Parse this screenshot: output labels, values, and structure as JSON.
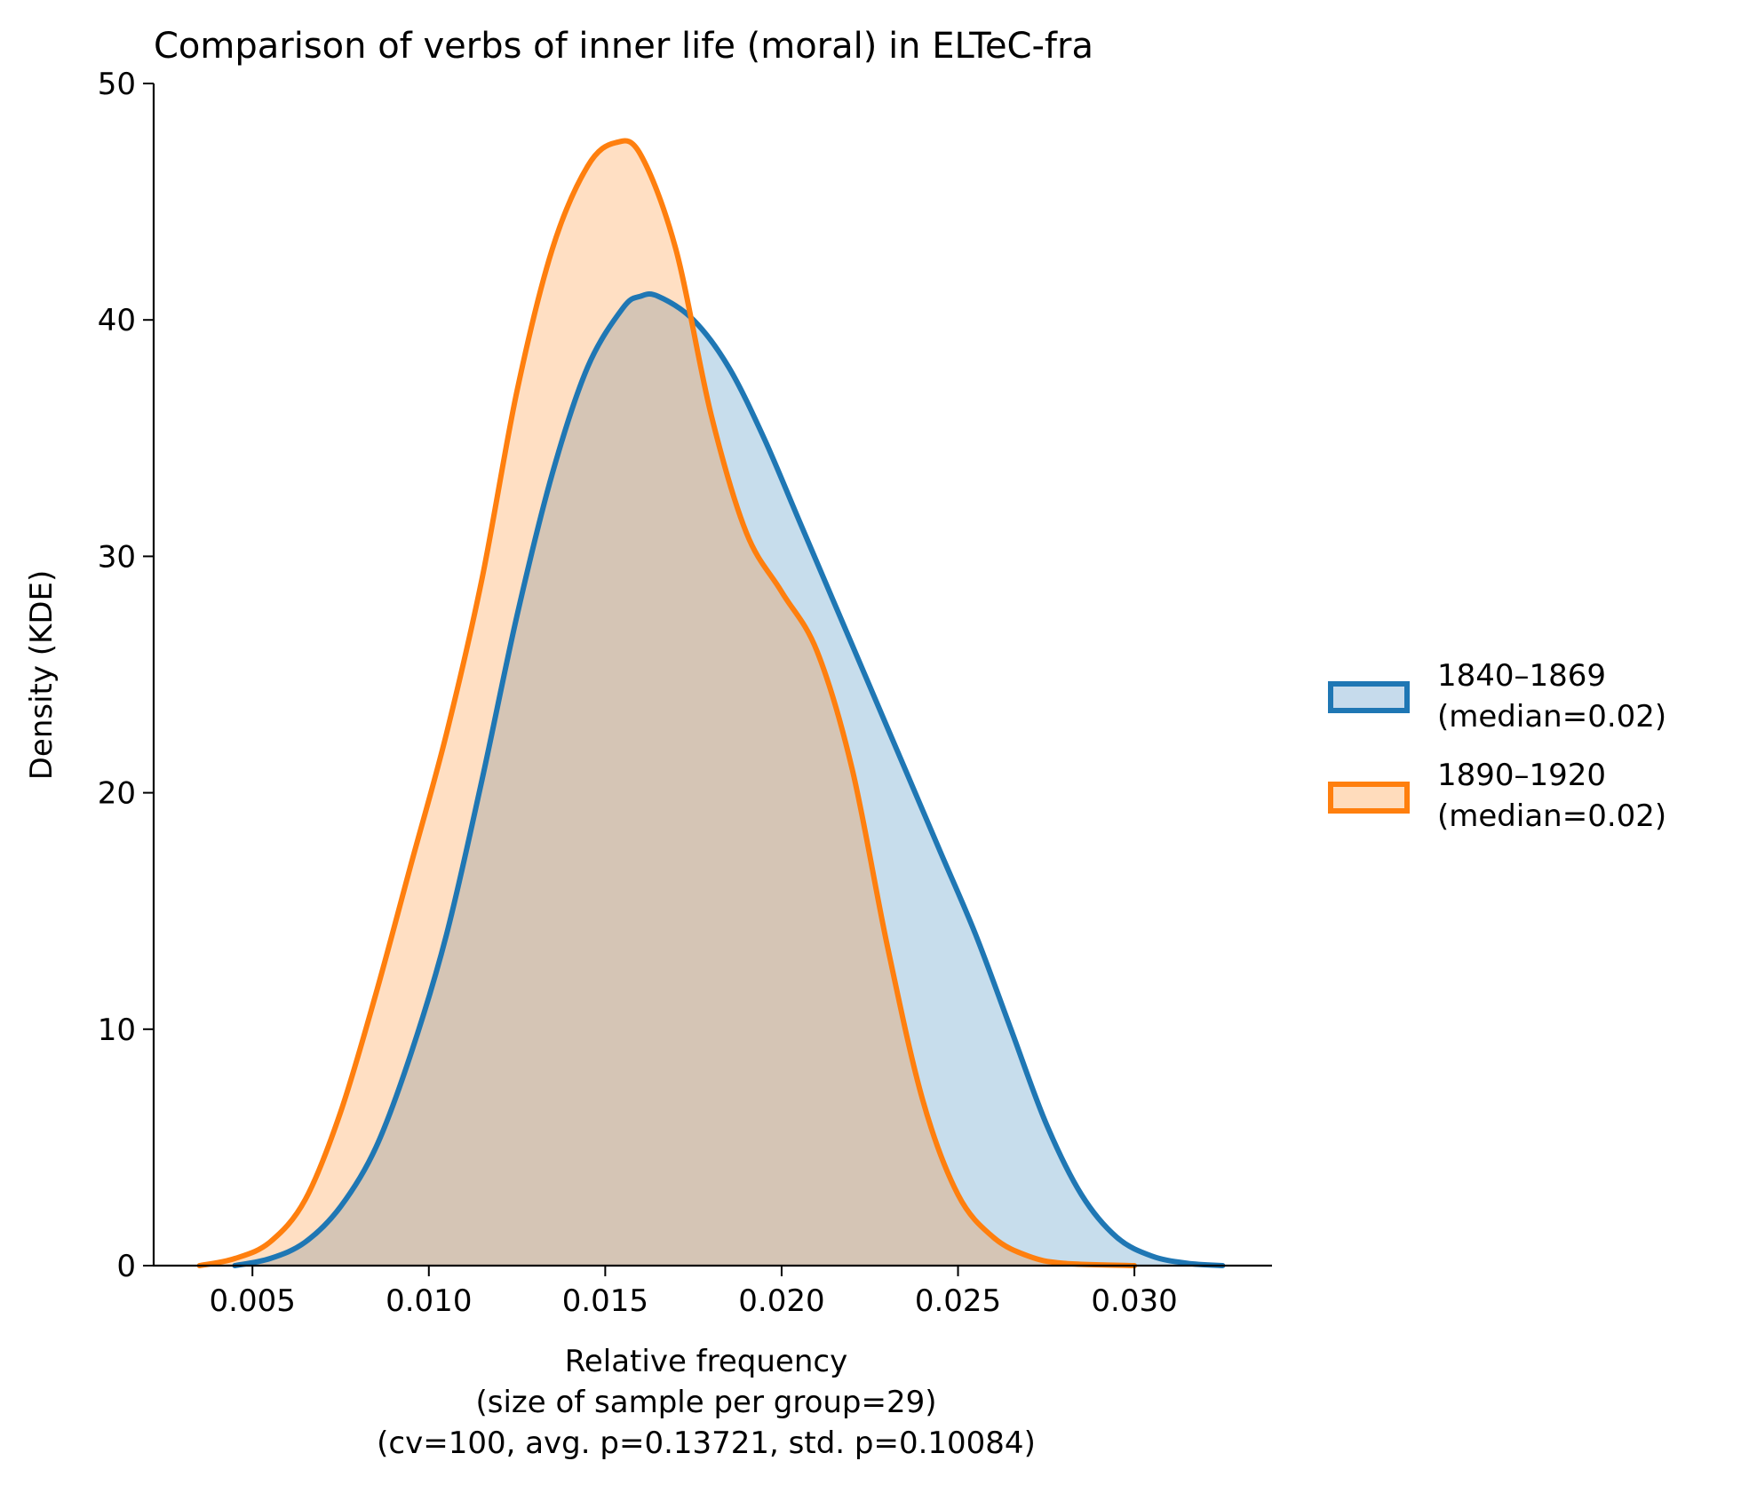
{
  "chart_data": {
    "type": "area",
    "title": "Comparison of verbs of inner life (moral) in ELTeC-fra",
    "ylabel": "Density (KDE)",
    "xlabel_lines": [
      "Relative frequency",
      "(size of sample per group=29)",
      "(cv=100, avg. p=0.13721, std. p=0.10084)"
    ],
    "xlim": [
      0.0022,
      0.0339
    ],
    "ylim": [
      0,
      50
    ],
    "xticks": [
      0.005,
      0.01,
      0.015,
      0.02,
      0.025,
      0.03
    ],
    "xtick_labels": [
      "0.005",
      "0.010",
      "0.015",
      "0.020",
      "0.025",
      "0.030"
    ],
    "yticks": [
      0,
      10,
      20,
      30,
      40,
      50
    ],
    "ytick_labels": [
      "0",
      "10",
      "20",
      "30",
      "40",
      "50"
    ],
    "grid": false,
    "legend_position": "right",
    "series": [
      {
        "name_lines": [
          "1840–1869",
          "(median=0.02)"
        ],
        "color": "#1f77b4",
        "fill": "#1f77b4",
        "fill_opacity": 0.25,
        "points": [
          [
            0.0045,
            0.0
          ],
          [
            0.0055,
            0.3
          ],
          [
            0.0065,
            1.0
          ],
          [
            0.0075,
            2.5
          ],
          [
            0.0085,
            5.0
          ],
          [
            0.0095,
            9.0
          ],
          [
            0.0105,
            14.0
          ],
          [
            0.0115,
            20.5
          ],
          [
            0.0125,
            27.5
          ],
          [
            0.0135,
            33.5
          ],
          [
            0.0145,
            38.0
          ],
          [
            0.0155,
            40.5
          ],
          [
            0.016,
            41.0
          ],
          [
            0.0165,
            41.0
          ],
          [
            0.0175,
            40.0
          ],
          [
            0.0185,
            38.0
          ],
          [
            0.0195,
            35.0
          ],
          [
            0.0205,
            31.5
          ],
          [
            0.0215,
            28.0
          ],
          [
            0.0225,
            24.5
          ],
          [
            0.0235,
            21.0
          ],
          [
            0.0245,
            17.5
          ],
          [
            0.0255,
            14.0
          ],
          [
            0.0265,
            10.0
          ],
          [
            0.0275,
            6.0
          ],
          [
            0.0285,
            3.0
          ],
          [
            0.0295,
            1.2
          ],
          [
            0.0305,
            0.4
          ],
          [
            0.0315,
            0.1
          ],
          [
            0.0325,
            0.0
          ]
        ]
      },
      {
        "name_lines": [
          "1890–1920",
          "(median=0.02)"
        ],
        "color": "#ff7f0e",
        "fill": "#ff7f0e",
        "fill_opacity": 0.25,
        "points": [
          [
            0.0035,
            0.0
          ],
          [
            0.0045,
            0.3
          ],
          [
            0.0055,
            1.0
          ],
          [
            0.0065,
            2.8
          ],
          [
            0.0075,
            6.5
          ],
          [
            0.0085,
            11.5
          ],
          [
            0.0095,
            17.0
          ],
          [
            0.0105,
            22.5
          ],
          [
            0.0115,
            29.0
          ],
          [
            0.0125,
            37.0
          ],
          [
            0.0135,
            43.0
          ],
          [
            0.0145,
            46.5
          ],
          [
            0.0153,
            47.5
          ],
          [
            0.016,
            47.0
          ],
          [
            0.017,
            43.0
          ],
          [
            0.018,
            36.0
          ],
          [
            0.019,
            31.0
          ],
          [
            0.02,
            28.5
          ],
          [
            0.021,
            26.0
          ],
          [
            0.022,
            21.0
          ],
          [
            0.023,
            13.5
          ],
          [
            0.024,
            7.0
          ],
          [
            0.025,
            3.0
          ],
          [
            0.026,
            1.2
          ],
          [
            0.027,
            0.4
          ],
          [
            0.028,
            0.1
          ],
          [
            0.03,
            0.0
          ]
        ]
      }
    ]
  }
}
